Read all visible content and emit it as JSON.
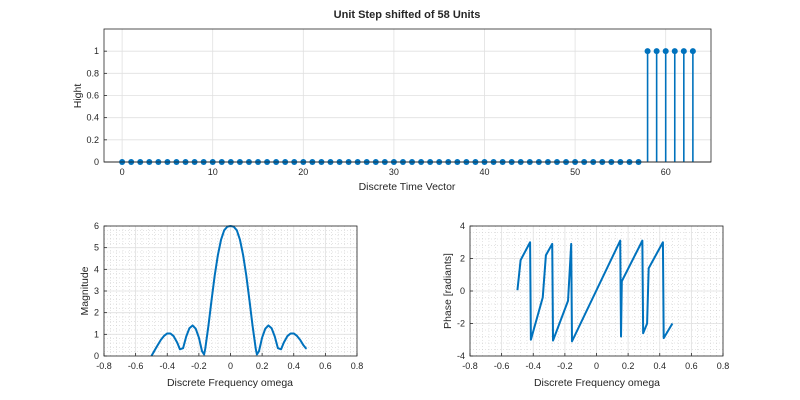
{
  "chart_data": [
    {
      "type": "stem",
      "title": "Unit Step shifted of 58 Units",
      "xlabel": "Discrete Time Vector",
      "ylabel": "Hight",
      "xlim": [
        -2,
        65
      ],
      "ylim": [
        0,
        1.2
      ],
      "xticks": [
        "0",
        "10",
        "20",
        "30",
        "40",
        "50",
        "60"
      ],
      "yticks": [
        "0",
        "0.2",
        "0.4",
        "0.6",
        "0.8",
        "1"
      ],
      "grid": true,
      "color": "#0072BD",
      "x": [
        0,
        1,
        2,
        3,
        4,
        5,
        6,
        7,
        8,
        9,
        10,
        11,
        12,
        13,
        14,
        15,
        16,
        17,
        18,
        19,
        20,
        21,
        22,
        23,
        24,
        25,
        26,
        27,
        28,
        29,
        30,
        31,
        32,
        33,
        34,
        35,
        36,
        37,
        38,
        39,
        40,
        41,
        42,
        43,
        44,
        45,
        46,
        47,
        48,
        49,
        50,
        51,
        52,
        53,
        54,
        55,
        56,
        57,
        58,
        59,
        60,
        61,
        62,
        63
      ],
      "y": [
        0,
        0,
        0,
        0,
        0,
        0,
        0,
        0,
        0,
        0,
        0,
        0,
        0,
        0,
        0,
        0,
        0,
        0,
        0,
        0,
        0,
        0,
        0,
        0,
        0,
        0,
        0,
        0,
        0,
        0,
        0,
        0,
        0,
        0,
        0,
        0,
        0,
        0,
        0,
        0,
        0,
        0,
        0,
        0,
        0,
        0,
        0,
        0,
        0,
        0,
        0,
        0,
        0,
        0,
        0,
        0,
        0,
        0,
        1,
        1,
        1,
        1,
        1,
        1
      ]
    },
    {
      "type": "line",
      "title": "",
      "xlabel": "Discrete Frequency omega",
      "ylabel": "Magnitude",
      "xlim": [
        -0.8,
        0.8
      ],
      "ylim": [
        0,
        6
      ],
      "xticks": [
        "-0.8",
        "-0.6",
        "-0.4",
        "-0.2",
        "0",
        "0.2",
        "0.4",
        "0.6",
        "0.8"
      ],
      "yticks": [
        "0",
        "1",
        "2",
        "3",
        "4",
        "5",
        "6"
      ],
      "grid": true,
      "minor_grid": true,
      "color": "#0072BD",
      "x": [
        -0.5,
        -0.48,
        -0.46,
        -0.44,
        -0.42,
        -0.4,
        -0.38,
        -0.36,
        -0.34,
        -0.333,
        -0.32,
        -0.3,
        -0.28,
        -0.26,
        -0.24,
        -0.22,
        -0.2,
        -0.18,
        -0.167,
        -0.16,
        -0.14,
        -0.12,
        -0.1,
        -0.08,
        -0.06,
        -0.04,
        -0.02,
        0,
        0.02,
        0.04,
        0.06,
        0.08,
        0.1,
        0.12,
        0.14,
        0.16,
        0.167,
        0.18,
        0.2,
        0.22,
        0.24,
        0.26,
        0.28,
        0.3,
        0.32,
        0.333,
        0.34,
        0.36,
        0.38,
        0.4,
        0.42,
        0.44,
        0.46,
        0.48
      ],
      "y": [
        0,
        0.26,
        0.51,
        0.75,
        0.93,
        1.04,
        1.04,
        0.92,
        0.66,
        0.55,
        0.31,
        0.36,
        0.9,
        1.28,
        1.41,
        1.26,
        0.85,
        0.22,
        0.07,
        0.32,
        1.37,
        2.57,
        3.71,
        4.65,
        5.36,
        5.8,
        5.97,
        6.0,
        5.97,
        5.8,
        5.36,
        4.65,
        3.71,
        2.57,
        1.37,
        0.32,
        0.07,
        0.22,
        0.85,
        1.26,
        1.41,
        1.28,
        0.9,
        0.36,
        0.31,
        0.55,
        0.66,
        0.92,
        1.04,
        1.04,
        0.93,
        0.75,
        0.51,
        0.33
      ]
    },
    {
      "type": "line",
      "title": "",
      "xlabel": "Discrete Frequency omega",
      "ylabel": "Phase [radiants]",
      "xlim": [
        -0.8,
        0.8
      ],
      "ylim": [
        -4,
        4
      ],
      "xticks": [
        "-0.8",
        "-0.6",
        "-0.4",
        "-0.2",
        "0",
        "0.2",
        "0.4",
        "0.6",
        "0.8"
      ],
      "yticks": [
        "-4",
        "-2",
        "0",
        "2",
        "4"
      ],
      "grid": true,
      "minor_grid": true,
      "color": "#0072BD",
      "x": [
        -0.5,
        -0.48,
        -0.42,
        -0.415,
        -0.34,
        -0.32,
        -0.28,
        -0.275,
        -0.18,
        -0.16,
        -0.155,
        0.15,
        0.155,
        0.16,
        0.29,
        0.295,
        0.32,
        0.33,
        0.42,
        0.425,
        0.48
      ],
      "y": [
        0.05,
        1.9,
        3.0,
        -3.0,
        -0.4,
        2.2,
        2.9,
        -3.05,
        -0.6,
        2.9,
        -3.1,
        3.1,
        -2.8,
        0.6,
        3.1,
        -2.6,
        -2.0,
        1.4,
        3.0,
        -2.9,
        -2.0
      ]
    }
  ]
}
